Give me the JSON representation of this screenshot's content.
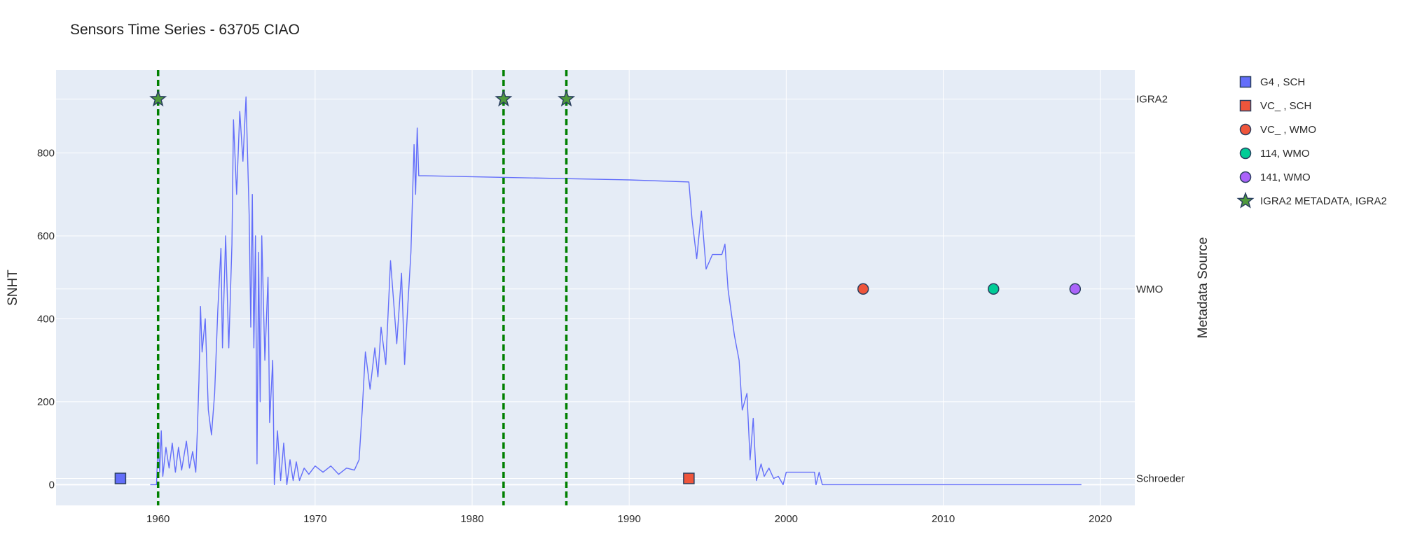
{
  "chart_data": {
    "type": "line",
    "title": "Sensors Time Series - 63705 CIAO",
    "xlabel": "",
    "ylabel": "SNHT",
    "y2label": "Metadata Source",
    "xlim": [
      1953.5,
      2022.2
    ],
    "ylim": [
      -50,
      1000
    ],
    "x_ticks": [
      1960,
      1970,
      1980,
      1990,
      2000,
      2010,
      2020
    ],
    "y_ticks": [
      0,
      200,
      400,
      600,
      800
    ],
    "y2_categories": [
      "Schroeder",
      "WMO",
      "IGRA2"
    ],
    "y2_category_values": [
      15,
      472,
      930
    ],
    "grid": true,
    "colors": {
      "plot_bg": "#e5ecf6",
      "grid": "#ffffff",
      "line": "#636efa",
      "vline": "#008000",
      "marker_outline": "#2a3f5f"
    },
    "line_series": {
      "name": "SNHT",
      "points": [
        [
          1959.5,
          0
        ],
        [
          1959.9,
          0
        ],
        [
          1960.0,
          110
        ],
        [
          1960.1,
          30
        ],
        [
          1960.2,
          130
        ],
        [
          1960.3,
          20
        ],
        [
          1960.5,
          90
        ],
        [
          1960.7,
          40
        ],
        [
          1960.9,
          100
        ],
        [
          1961.1,
          30
        ],
        [
          1961.3,
          90
        ],
        [
          1961.5,
          35
        ],
        [
          1961.8,
          105
        ],
        [
          1962.0,
          40
        ],
        [
          1962.2,
          80
        ],
        [
          1962.4,
          30
        ],
        [
          1962.5,
          130
        ],
        [
          1962.6,
          250
        ],
        [
          1962.7,
          430
        ],
        [
          1962.8,
          320
        ],
        [
          1963.0,
          400
        ],
        [
          1963.2,
          180
        ],
        [
          1963.4,
          120
        ],
        [
          1963.6,
          220
        ],
        [
          1963.8,
          420
        ],
        [
          1964.0,
          570
        ],
        [
          1964.1,
          330
        ],
        [
          1964.3,
          600
        ],
        [
          1964.5,
          330
        ],
        [
          1964.7,
          580
        ],
        [
          1964.8,
          880
        ],
        [
          1965.0,
          700
        ],
        [
          1965.2,
          900
        ],
        [
          1965.4,
          780
        ],
        [
          1965.6,
          935
        ],
        [
          1965.8,
          650
        ],
        [
          1965.9,
          380
        ],
        [
          1966.0,
          700
        ],
        [
          1966.1,
          330
        ],
        [
          1966.2,
          600
        ],
        [
          1966.3,
          50
        ],
        [
          1966.4,
          560
        ],
        [
          1966.5,
          200
        ],
        [
          1966.6,
          600
        ],
        [
          1966.8,
          300
        ],
        [
          1967.0,
          500
        ],
        [
          1967.1,
          150
        ],
        [
          1967.3,
          300
        ],
        [
          1967.4,
          0
        ],
        [
          1967.6,
          130
        ],
        [
          1967.8,
          10
        ],
        [
          1968.0,
          100
        ],
        [
          1968.2,
          0
        ],
        [
          1968.4,
          60
        ],
        [
          1968.6,
          10
        ],
        [
          1968.8,
          55
        ],
        [
          1969.0,
          10
        ],
        [
          1969.3,
          40
        ],
        [
          1969.6,
          25
        ],
        [
          1970.0,
          45
        ],
        [
          1970.5,
          30
        ],
        [
          1971.0,
          45
        ],
        [
          1971.5,
          25
        ],
        [
          1972.0,
          40
        ],
        [
          1972.5,
          35
        ],
        [
          1972.8,
          60
        ],
        [
          1973.0,
          180
        ],
        [
          1973.2,
          320
        ],
        [
          1973.5,
          230
        ],
        [
          1973.8,
          330
        ],
        [
          1974.0,
          260
        ],
        [
          1974.2,
          380
        ],
        [
          1974.5,
          290
        ],
        [
          1974.8,
          540
        ],
        [
          1975.0,
          440
        ],
        [
          1975.2,
          340
        ],
        [
          1975.5,
          510
        ],
        [
          1975.7,
          290
        ],
        [
          1975.9,
          430
        ],
        [
          1976.1,
          560
        ],
        [
          1976.3,
          820
        ],
        [
          1976.4,
          700
        ],
        [
          1976.5,
          860
        ],
        [
          1976.6,
          745
        ],
        [
          1977.0,
          745
        ],
        [
          1990.0,
          735
        ],
        [
          1993.8,
          730
        ],
        [
          1994.0,
          640
        ],
        [
          1994.3,
          545
        ],
        [
          1994.6,
          660
        ],
        [
          1994.9,
          520
        ],
        [
          1995.3,
          555
        ],
        [
          1995.9,
          555
        ],
        [
          1996.1,
          580
        ],
        [
          1996.3,
          470
        ],
        [
          1996.7,
          360
        ],
        [
          1997.0,
          300
        ],
        [
          1997.2,
          180
        ],
        [
          1997.5,
          220
        ],
        [
          1997.7,
          60
        ],
        [
          1997.9,
          160
        ],
        [
          1998.1,
          10
        ],
        [
          1998.4,
          50
        ],
        [
          1998.6,
          20
        ],
        [
          1998.9,
          40
        ],
        [
          1999.2,
          15
        ],
        [
          1999.5,
          20
        ],
        [
          1999.8,
          0
        ],
        [
          2000.0,
          30
        ],
        [
          2001.8,
          30
        ],
        [
          2001.9,
          0
        ],
        [
          2002.1,
          30
        ],
        [
          2002.3,
          0
        ],
        [
          2018.8,
          0
        ]
      ]
    },
    "vertical_lines": [
      1960.0,
      1982.0,
      1986.0
    ],
    "markers": [
      {
        "legend": "G4  , SCH",
        "x": 1957.6,
        "y": 15,
        "symbol": "square",
        "color": "#636efa"
      },
      {
        "legend": "VC_ , SCH",
        "x": 1993.8,
        "y": 15,
        "symbol": "square",
        "color": "#ef553b"
      },
      {
        "legend": "VC_ , WMO",
        "x": 2004.9,
        "y": 472,
        "symbol": "circle",
        "color": "#ef553b"
      },
      {
        "legend": "114, WMO",
        "x": 2013.2,
        "y": 472,
        "symbol": "circle",
        "color": "#00cc96"
      },
      {
        "legend": "141, WMO",
        "x": 2018.4,
        "y": 472,
        "symbol": "circle",
        "color": "#ab63fa"
      },
      {
        "legend": "IGRA2 METADATA, IGRA2",
        "x": [
          1960.0,
          1982.0,
          1986.0
        ],
        "y": 930,
        "symbol": "star",
        "color": "#4f9a3c"
      }
    ],
    "legend_position": "right"
  }
}
